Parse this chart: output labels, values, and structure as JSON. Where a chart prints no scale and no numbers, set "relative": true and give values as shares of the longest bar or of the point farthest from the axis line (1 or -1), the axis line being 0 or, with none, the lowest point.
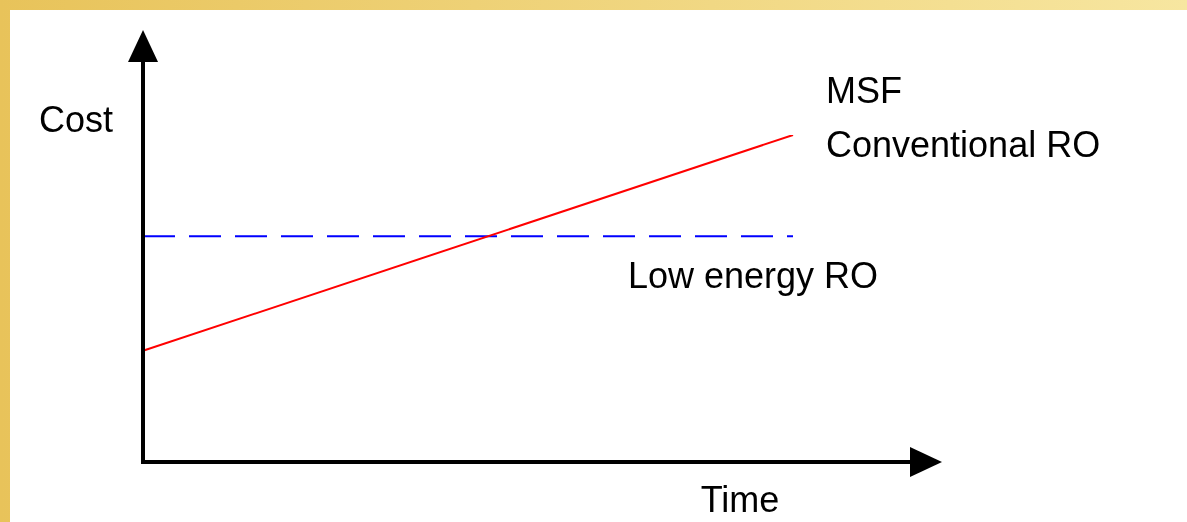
{
  "chart_data": {
    "type": "line",
    "relative": true,
    "xlabel": "Time",
    "ylabel": "Cost",
    "categories": [
      null,
      null
    ],
    "legend": false,
    "marker": "none",
    "series": [
      {
        "name": "MSF\nConventional RO",
        "color": "#ff0000",
        "values": [
          0.34,
          1
        ],
        "line_style": "solid"
      },
      {
        "name": "Low energy RO",
        "color": "#0000ff",
        "values": [
          0.69,
          0.69
        ],
        "line_style": "dashed"
      }
    ]
  }
}
